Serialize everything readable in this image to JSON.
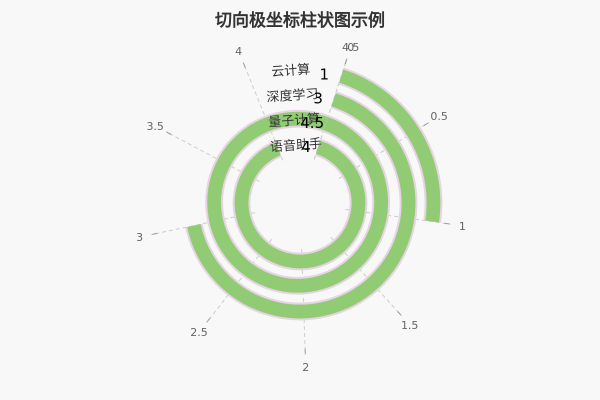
{
  "chart_data": {
    "type": "bar",
    "title": "切向极坐标柱状图示例",
    "coordinate": "polar",
    "orientation": "tangential",
    "categories": [
      "云计算",
      "深度学习",
      "量子计算",
      "语音助手"
    ],
    "values": [
      1,
      3,
      4.5,
      4
    ],
    "axis": {
      "min": 0,
      "max": 4.5,
      "ticks": [
        0,
        0.5,
        1,
        1.5,
        2,
        2.5,
        3,
        3.5,
        4,
        4.5
      ]
    },
    "grid": true,
    "legend": "none",
    "colors": {
      "bar": "#91cc75",
      "bar_border": "#e6d4e2",
      "axis_line": "#999999",
      "grid_line": "#cccccc",
      "background": "#f8f8f8"
    }
  }
}
